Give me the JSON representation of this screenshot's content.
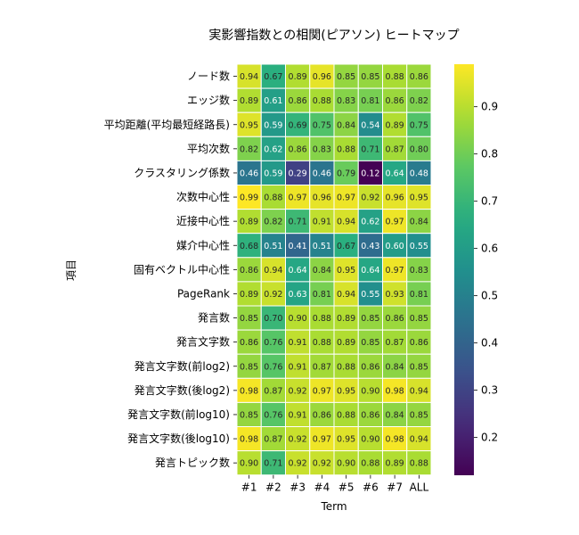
{
  "chart_data": {
    "type": "heatmap",
    "title": "実影響指数との相関(ピアソン) ヒートマップ",
    "xlabel": "Term",
    "ylabel": "項目",
    "colormap": "viridis",
    "vmin": 0.12,
    "vmax": 0.99,
    "colorbar_ticks": [
      0.2,
      0.3,
      0.4,
      0.5,
      0.6,
      0.7,
      0.8,
      0.9
    ],
    "colorbar_tick_labels": [
      "0.2",
      "0.3",
      "0.4",
      "0.5",
      "0.6",
      "0.7",
      "0.8",
      "0.9"
    ],
    "columns": [
      "#1",
      "#2",
      "#3",
      "#4",
      "#5",
      "#6",
      "#7",
      "ALL"
    ],
    "rows": [
      "ノード数",
      "エッジ数",
      "平均距離(平均最短経路長)",
      "平均次数",
      "クラスタリング係数",
      "次数中心性",
      "近接中心性",
      "媒介中心性",
      "固有ベクトル中心性",
      "PageRank",
      "発言数",
      "発言文字数",
      "発言文字数(前log2)",
      "発言文字数(後log2)",
      "発言文字数(前log10)",
      "発言文字数(後log10)",
      "発言トピック数"
    ],
    "values": [
      [
        0.94,
        0.67,
        0.89,
        0.96,
        0.85,
        0.85,
        0.88,
        0.86
      ],
      [
        0.89,
        0.61,
        0.86,
        0.88,
        0.83,
        0.81,
        0.86,
        0.82
      ],
      [
        0.95,
        0.59,
        0.69,
        0.75,
        0.84,
        0.54,
        0.89,
        0.75
      ],
      [
        0.82,
        0.62,
        0.86,
        0.83,
        0.88,
        0.71,
        0.87,
        0.8
      ],
      [
        0.46,
        0.59,
        0.29,
        0.46,
        0.79,
        0.12,
        0.64,
        0.48
      ],
      [
        0.99,
        0.88,
        0.97,
        0.96,
        0.97,
        0.92,
        0.96,
        0.95
      ],
      [
        0.89,
        0.82,
        0.71,
        0.91,
        0.94,
        0.62,
        0.97,
        0.84
      ],
      [
        0.68,
        0.51,
        0.41,
        0.51,
        0.67,
        0.43,
        0.6,
        0.55
      ],
      [
        0.86,
        0.94,
        0.64,
        0.84,
        0.95,
        0.64,
        0.97,
        0.83
      ],
      [
        0.89,
        0.92,
        0.63,
        0.81,
        0.94,
        0.55,
        0.93,
        0.81
      ],
      [
        0.85,
        0.7,
        0.9,
        0.88,
        0.89,
        0.85,
        0.86,
        0.85
      ],
      [
        0.86,
        0.76,
        0.91,
        0.88,
        0.89,
        0.85,
        0.87,
        0.86
      ],
      [
        0.85,
        0.76,
        0.91,
        0.87,
        0.88,
        0.86,
        0.84,
        0.85
      ],
      [
        0.98,
        0.87,
        0.92,
        0.97,
        0.95,
        0.9,
        0.98,
        0.94
      ],
      [
        0.85,
        0.76,
        0.91,
        0.86,
        0.88,
        0.86,
        0.84,
        0.85
      ],
      [
        0.98,
        0.87,
        0.92,
        0.97,
        0.95,
        0.9,
        0.98,
        0.94
      ],
      [
        0.9,
        0.71,
        0.92,
        0.92,
        0.9,
        0.88,
        0.89,
        0.88
      ]
    ]
  }
}
